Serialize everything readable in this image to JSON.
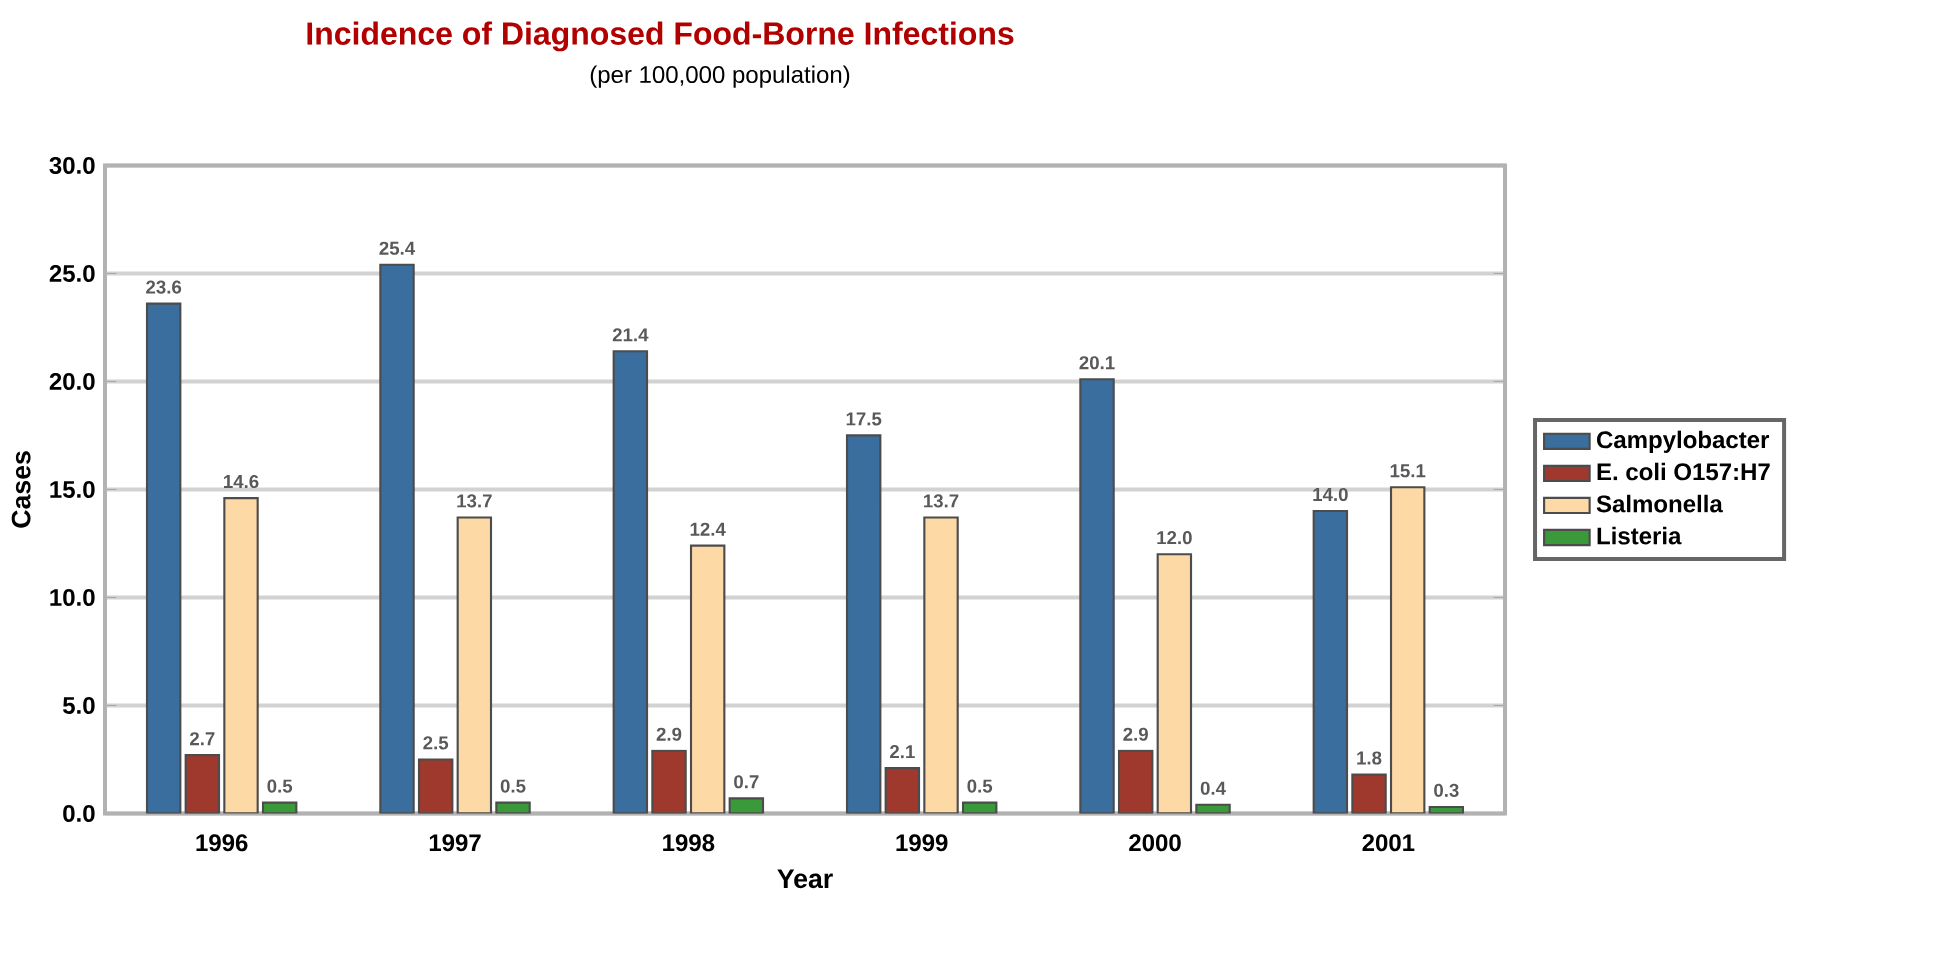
{
  "chart_data": {
    "type": "bar",
    "title": "Incidence of Diagnosed Food-Borne Infections",
    "subtitle": "(per 100,000 population)",
    "xlabel": "Year",
    "ylabel": "Cases",
    "categories": [
      "1996",
      "1997",
      "1998",
      "1999",
      "2000",
      "2001"
    ],
    "series": [
      {
        "name": "Campylobacter",
        "color": "#3a6e9e",
        "values": [
          23.6,
          25.4,
          21.4,
          17.5,
          20.1,
          14.0
        ],
        "value_labels": [
          "23.6",
          "25.4",
          "21.4",
          "17.5",
          "20.1",
          "14.0"
        ]
      },
      {
        "name": "E. coli O157:H7",
        "color": "#a0392d",
        "values": [
          2.7,
          2.5,
          2.9,
          2.1,
          2.9,
          1.8
        ],
        "value_labels": [
          "2.7",
          "2.5",
          "2.9",
          "2.1",
          "2.9",
          "1.8"
        ]
      },
      {
        "name": "Salmonella",
        "color": "#fdd9a6",
        "values": [
          14.6,
          13.7,
          12.4,
          13.7,
          12.0,
          15.1
        ],
        "value_labels": [
          "14.6",
          "13.7",
          "12.4",
          "13.7",
          "12.0",
          "15.1"
        ]
      },
      {
        "name": "Listeria",
        "color": "#3a9a3a",
        "values": [
          0.5,
          0.5,
          0.7,
          0.5,
          0.4,
          0.3
        ],
        "value_labels": [
          "0.5",
          "0.5",
          "0.7",
          "0.5",
          "0.4",
          "0.3"
        ]
      }
    ],
    "ylim": [
      0,
      30
    ],
    "yticks": [
      {
        "value": 0,
        "label": "0.0"
      },
      {
        "value": 5,
        "label": "5.0"
      },
      {
        "value": 10,
        "label": "10.0"
      },
      {
        "value": 15,
        "label": "15.0"
      },
      {
        "value": 20,
        "label": "20.0"
      },
      {
        "value": 25,
        "label": "25.0"
      },
      {
        "value": 30,
        "label": "30.0"
      }
    ],
    "grid": "y",
    "legend": "right"
  }
}
